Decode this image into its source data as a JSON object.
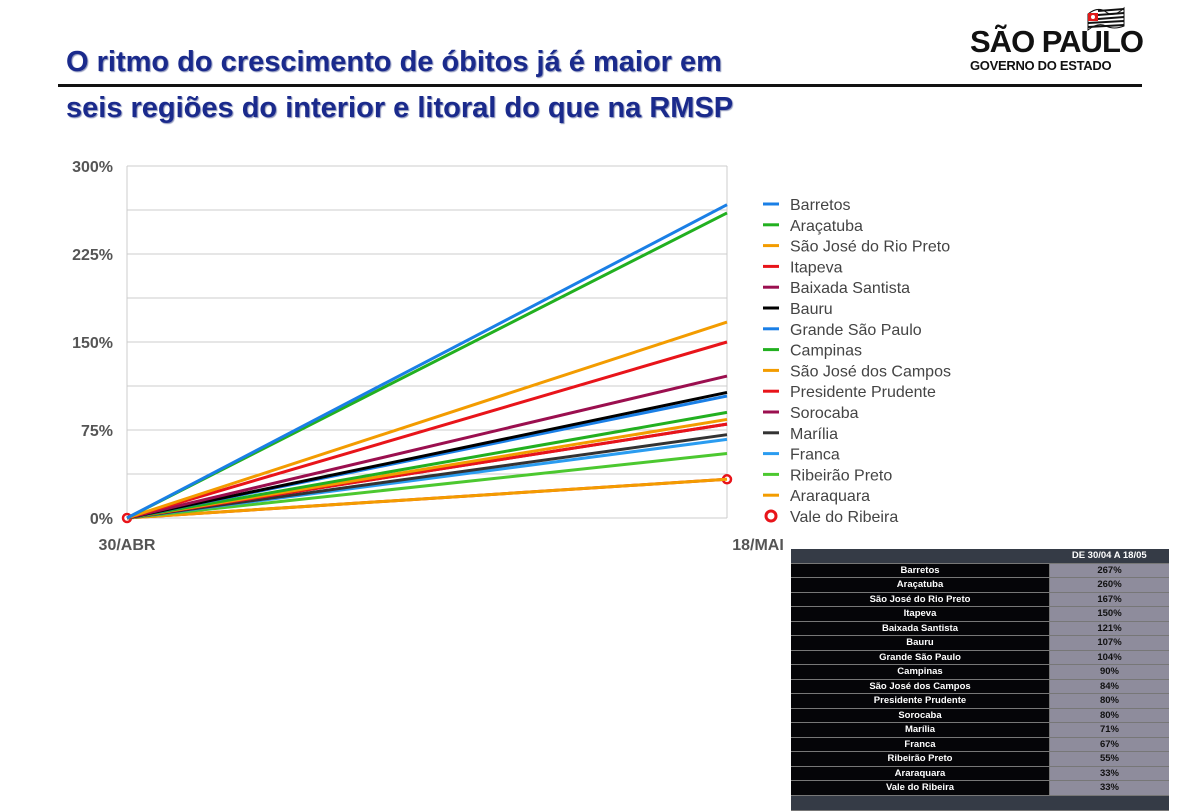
{
  "header": {
    "title_line1": "O ritmo do crescimento de óbitos já é maior em",
    "title_line2": "seis regiões do interior e litoral do que na RMSP",
    "logo_main": "SÃO PAULO",
    "logo_sub": "GOVERNO DO ESTADO"
  },
  "chart_data": {
    "type": "line",
    "title": "",
    "xlabel": "",
    "ylabel": "",
    "x": [
      "30/ABR",
      "18/MAI"
    ],
    "ylim": [
      0,
      300
    ],
    "yticks": [
      "0%",
      "75%",
      "150%",
      "225%",
      "300%"
    ],
    "grid": true,
    "legend": "right",
    "series": [
      {
        "name": "Barretos",
        "values": [
          0,
          267
        ],
        "color": "#1a7fe6"
      },
      {
        "name": "Araçatuba",
        "values": [
          0,
          260
        ],
        "color": "#22b020"
      },
      {
        "name": "São José do Rio Preto",
        "values": [
          0,
          167
        ],
        "color": "#f39c00"
      },
      {
        "name": "Itapeva",
        "values": [
          0,
          150
        ],
        "color": "#e8141a"
      },
      {
        "name": "Baixada Santista",
        "values": [
          0,
          121
        ],
        "color": "#9b0f4f"
      },
      {
        "name": "Bauru",
        "values": [
          0,
          107
        ],
        "color": "#000000"
      },
      {
        "name": "Grande São Paulo",
        "values": [
          0,
          104
        ],
        "color": "#1a7fe6"
      },
      {
        "name": "Campinas",
        "values": [
          0,
          90
        ],
        "color": "#22b020"
      },
      {
        "name": "São José dos Campos",
        "values": [
          0,
          84
        ],
        "color": "#f39c00"
      },
      {
        "name": "Presidente Prudente",
        "values": [
          0,
          80
        ],
        "color": "#e8141a"
      },
      {
        "name": "Sorocaba",
        "values": [
          0,
          80
        ],
        "color": "#9b0f4f"
      },
      {
        "name": "Marília",
        "values": [
          0,
          71
        ],
        "color": "#333333"
      },
      {
        "name": "Franca",
        "values": [
          0,
          67
        ],
        "color": "#2a9cf0"
      },
      {
        "name": "Ribeirão Preto",
        "values": [
          0,
          55
        ],
        "color": "#4cc830"
      },
      {
        "name": "Araraquara",
        "values": [
          0,
          33
        ],
        "color": "#f39c00"
      },
      {
        "name": "Vale do Ribeira",
        "values": [
          0,
          33
        ],
        "color": "#e8141a",
        "marker": "circle"
      }
    ]
  },
  "table": {
    "header": "DE 30/04 A 18/05",
    "rows": [
      [
        "Barretos",
        "267%"
      ],
      [
        "Araçatuba",
        "260%"
      ],
      [
        "São José do Rio Preto",
        "167%"
      ],
      [
        "Itapeva",
        "150%"
      ],
      [
        "Baixada Santista",
        "121%"
      ],
      [
        "Bauru",
        "107%"
      ],
      [
        "Grande São Paulo",
        "104%"
      ],
      [
        "Campinas",
        "90%"
      ],
      [
        "São José dos Campos",
        "84%"
      ],
      [
        "Presidente Prudente",
        "80%"
      ],
      [
        "Sorocaba",
        "80%"
      ],
      [
        "Marília",
        "71%"
      ],
      [
        "Franca",
        "67%"
      ],
      [
        "Ribeirão Preto",
        "55%"
      ],
      [
        "Araraquara",
        "33%"
      ],
      [
        "Vale do Ribeira",
        "33%"
      ]
    ]
  }
}
